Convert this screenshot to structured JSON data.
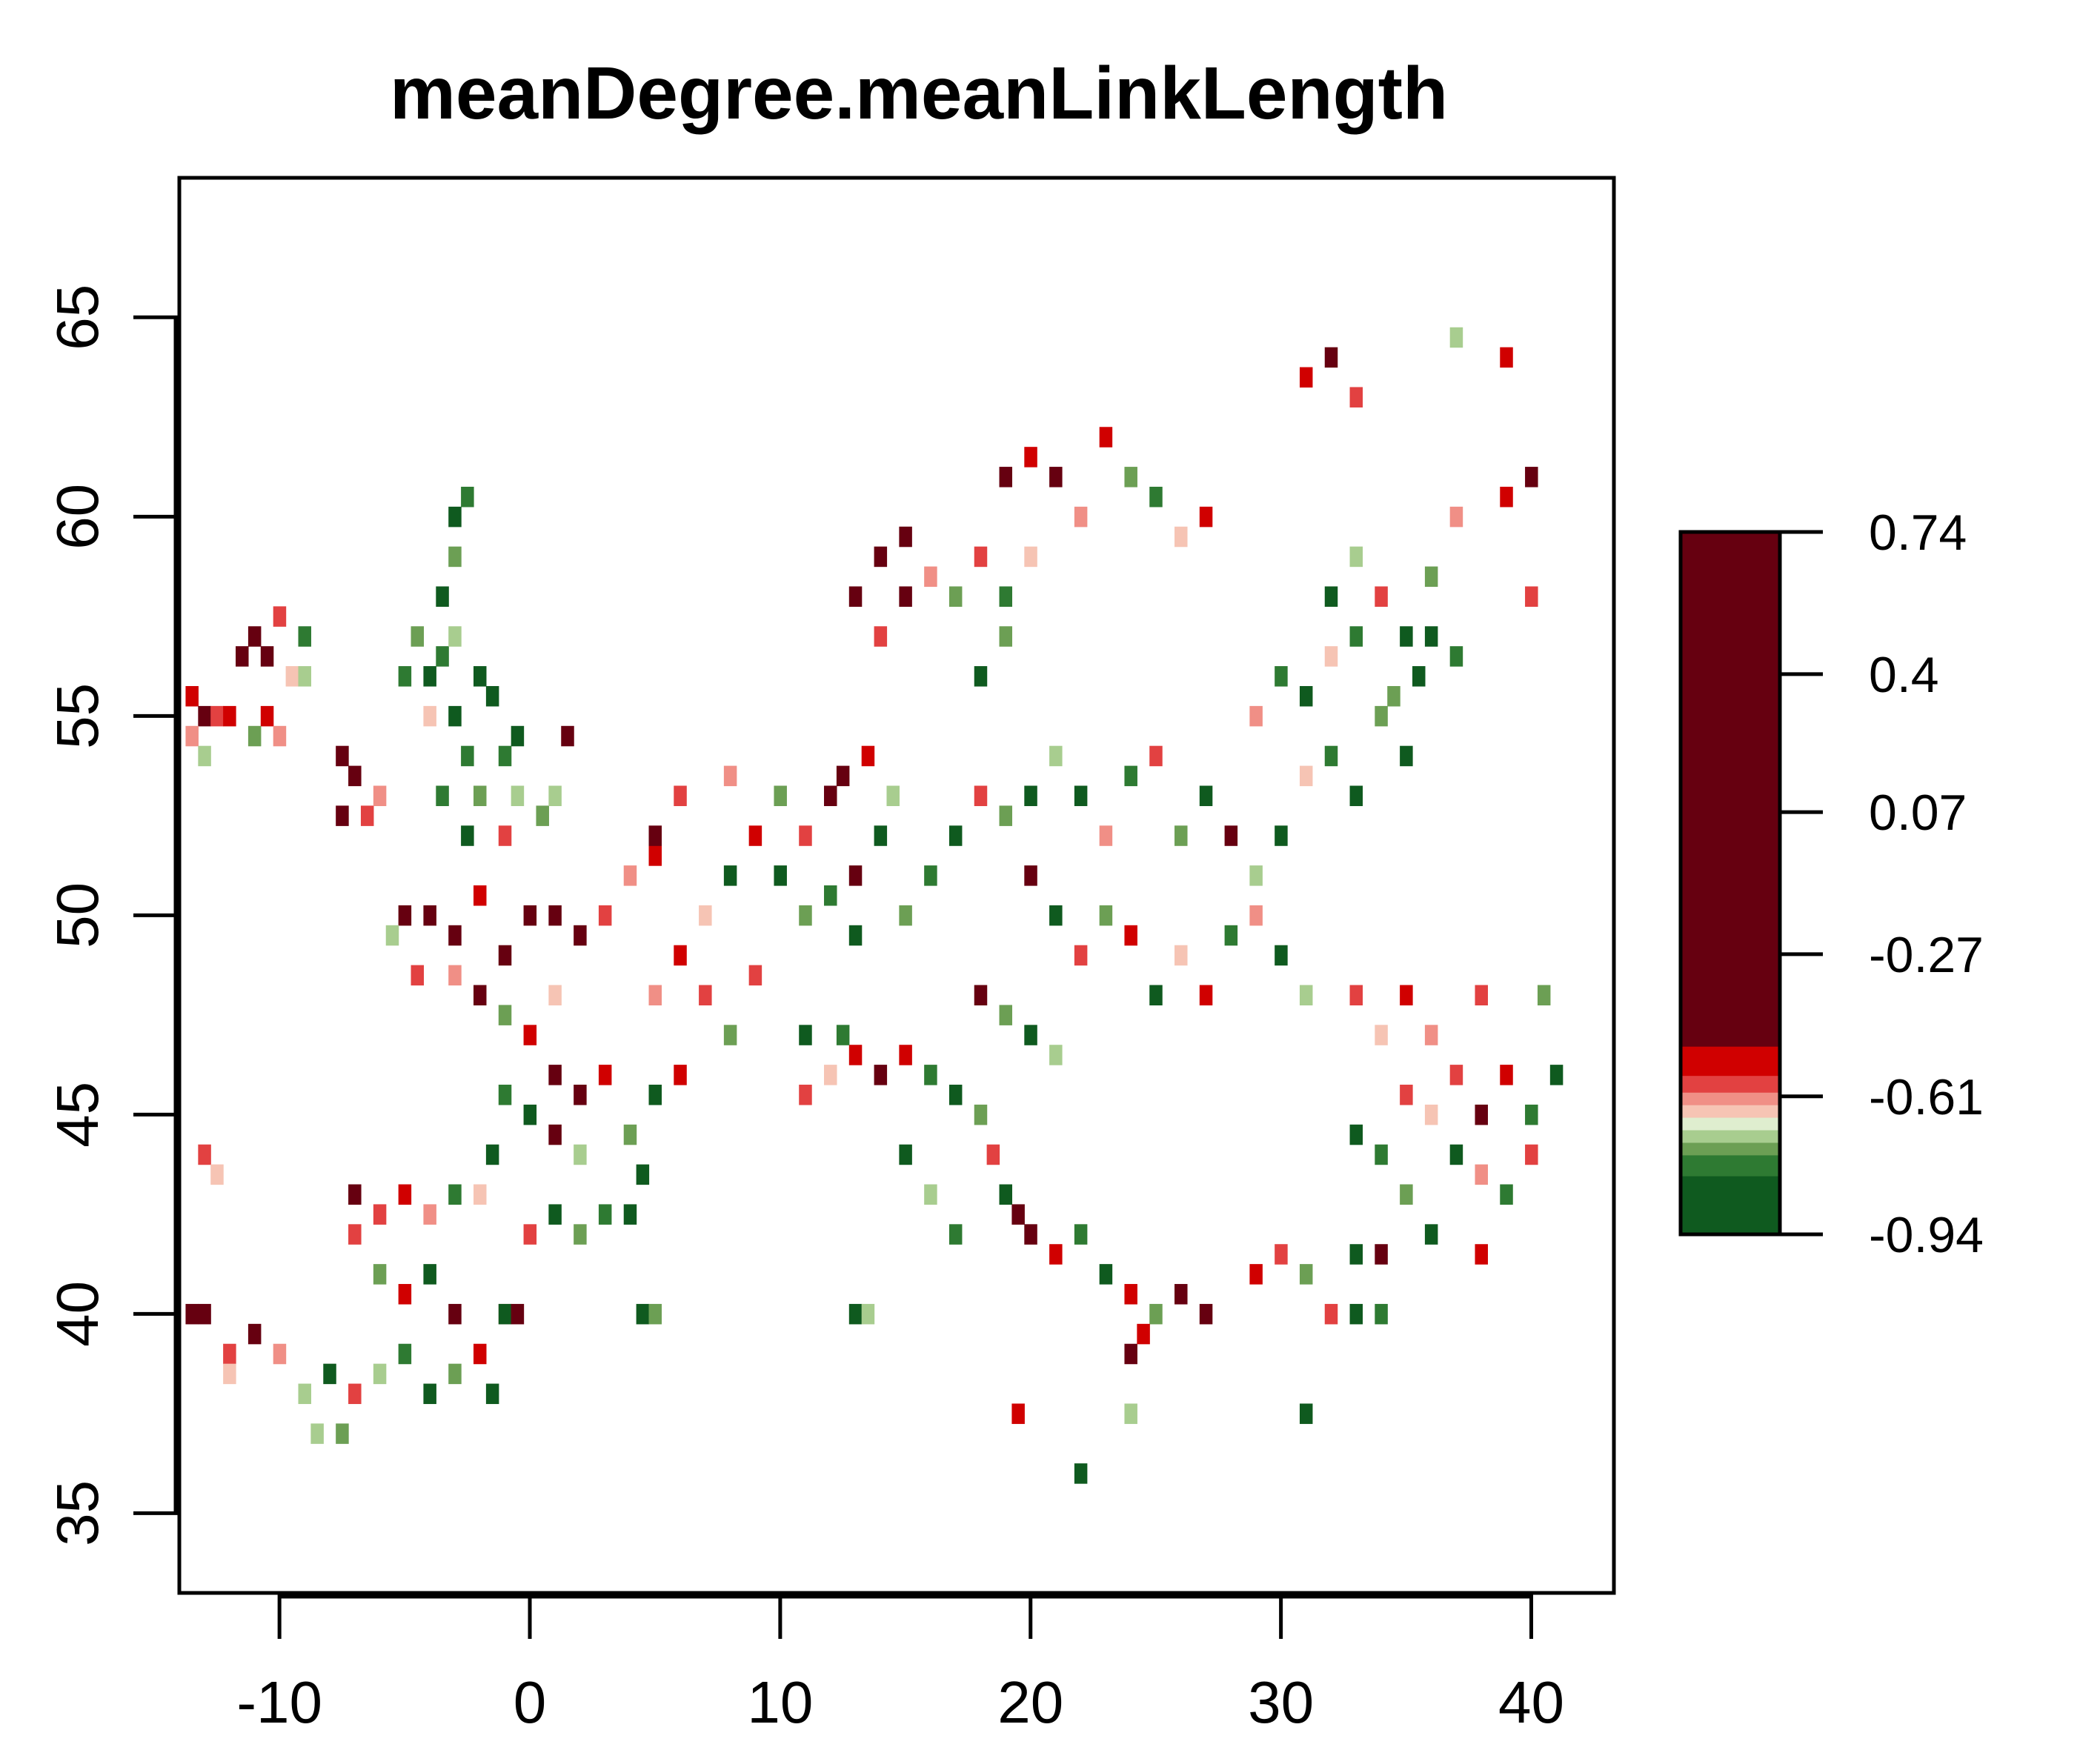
{
  "chart_data": {
    "type": "heatmap",
    "title": "meanDegree.meanLinkLength",
    "xlabel": "",
    "ylabel": "",
    "xlim": [
      -14,
      43.3
    ],
    "ylim": [
      33,
      68.5
    ],
    "x_ticks": [
      -10,
      0,
      10,
      20,
      30,
      40
    ],
    "y_ticks": [
      35,
      40,
      45,
      50,
      55,
      60,
      65
    ],
    "grid": false,
    "legend": {
      "position": "right",
      "tick_labels": [
        "0.74",
        "0.4",
        "0.07",
        "-0.27",
        "-0.61",
        "-0.94"
      ],
      "tick_values": [
        0.74,
        0.4,
        0.07,
        -0.27,
        -0.61,
        -0.94
      ],
      "range": [
        -0.94,
        0.74
      ],
      "color_bands": [
        {
          "from": -0.94,
          "to": -0.8,
          "color": "#0f5a1f"
        },
        {
          "from": -0.8,
          "to": -0.75,
          "color": "#2e7a32"
        },
        {
          "from": -0.75,
          "to": -0.72,
          "color": "#6c9f54"
        },
        {
          "from": -0.72,
          "to": -0.69,
          "color": "#a8cd8f"
        },
        {
          "from": -0.69,
          "to": -0.66,
          "color": "#dfeecf"
        },
        {
          "from": -0.66,
          "to": -0.63,
          "color": "#f6c4b4"
        },
        {
          "from": -0.63,
          "to": -0.6,
          "color": "#f08f86"
        },
        {
          "from": -0.6,
          "to": -0.56,
          "color": "#e24141"
        },
        {
          "from": -0.56,
          "to": -0.49,
          "color": "#d00000"
        },
        {
          "from": -0.49,
          "to": 0.74,
          "color": "#660010"
        }
      ]
    },
    "class_colors": [
      "#0f5a1f",
      "#2e7a32",
      "#6c9f54",
      "#a8cd8f",
      "#f6c4b4",
      "#f08f86",
      "#e24141",
      "#d00000",
      "#660010"
    ],
    "cell_size_degrees": 0.5,
    "cells": [
      [
        -13.5,
        55.5,
        7
      ],
      [
        -13,
        55,
        8
      ],
      [
        -12.5,
        55,
        6
      ],
      [
        -13.5,
        54.5,
        5
      ],
      [
        -12,
        55,
        7
      ],
      [
        -13,
        54,
        3
      ],
      [
        -11.5,
        56.5,
        8
      ],
      [
        -11,
        57,
        8
      ],
      [
        -10.5,
        56.5,
        8
      ],
      [
        -10,
        57.5,
        6
      ],
      [
        -9.5,
        56,
        4
      ],
      [
        -10.5,
        55,
        7
      ],
      [
        -9,
        57,
        1
      ],
      [
        -10,
        54.5,
        5
      ],
      [
        -11,
        54.5,
        2
      ],
      [
        -9,
        56,
        3
      ],
      [
        -7.5,
        54,
        8
      ],
      [
        -7,
        53.5,
        8
      ],
      [
        -6.5,
        52.5,
        6
      ],
      [
        -7.5,
        52.5,
        8
      ],
      [
        -6,
        53,
        5
      ],
      [
        -5,
        56,
        1
      ],
      [
        -4.5,
        57,
        2
      ],
      [
        -4,
        56,
        0
      ],
      [
        -3.5,
        56.5,
        1
      ],
      [
        -3,
        57,
        3
      ],
      [
        -3,
        55,
        0
      ],
      [
        -2.5,
        54,
        1
      ],
      [
        -2,
        53,
        2
      ],
      [
        -1.5,
        55.5,
        0
      ],
      [
        -1,
        54,
        1
      ],
      [
        -0.5,
        53,
        3
      ],
      [
        -3.5,
        58,
        0
      ],
      [
        -3,
        59,
        2
      ],
      [
        -2.5,
        60.5,
        1
      ],
      [
        -3,
        60,
        0
      ],
      [
        -4,
        55,
        4
      ],
      [
        -2,
        56,
        0
      ],
      [
        -1,
        52,
        6
      ],
      [
        -0.5,
        54.5,
        0
      ],
      [
        0.5,
        52.5,
        2
      ],
      [
        1,
        53,
        3
      ],
      [
        -2.5,
        52,
        0
      ],
      [
        -3.5,
        53,
        1
      ],
      [
        1.5,
        54.5,
        8
      ],
      [
        -5,
        50,
        8
      ],
      [
        -4,
        50,
        8
      ],
      [
        -3,
        49.5,
        8
      ],
      [
        -2,
        50.5,
        7
      ],
      [
        -1,
        49,
        8
      ],
      [
        0,
        50,
        8
      ],
      [
        1,
        50,
        8
      ],
      [
        2,
        49.5,
        8
      ],
      [
        3,
        50,
        6
      ],
      [
        1,
        48,
        4
      ],
      [
        0,
        47,
        7
      ],
      [
        -1,
        47.5,
        2
      ],
      [
        -2,
        48,
        8
      ],
      [
        -3,
        48.5,
        5
      ],
      [
        -4.5,
        48.5,
        6
      ],
      [
        -5.5,
        49.5,
        3
      ],
      [
        4,
        51,
        5
      ],
      [
        5,
        51.5,
        7
      ],
      [
        1,
        46,
        8
      ],
      [
        2,
        45.5,
        8
      ],
      [
        3,
        46,
        7
      ],
      [
        0,
        45,
        0
      ],
      [
        1,
        44.5,
        8
      ],
      [
        2,
        44,
        3
      ],
      [
        -1,
        45.5,
        1
      ],
      [
        4,
        44.5,
        2
      ],
      [
        5,
        45.5,
        0
      ],
      [
        6,
        46,
        7
      ],
      [
        4.5,
        43.5,
        0
      ],
      [
        -1.5,
        44,
        0
      ],
      [
        5,
        48,
        5
      ],
      [
        6,
        49,
        7
      ],
      [
        7,
        48,
        6
      ],
      [
        8,
        47,
        2
      ],
      [
        9,
        48.5,
        6
      ],
      [
        7,
        50,
        4
      ],
      [
        8,
        51,
        0
      ],
      [
        9,
        52,
        7
      ],
      [
        10,
        53,
        2
      ],
      [
        6,
        53,
        6
      ],
      [
        5,
        52,
        8
      ],
      [
        8,
        53.5,
        5
      ],
      [
        10,
        51,
        0
      ],
      [
        11,
        50,
        2
      ],
      [
        12,
        50.5,
        1
      ],
      [
        13,
        51,
        8
      ],
      [
        14,
        52,
        0
      ],
      [
        12,
        53,
        8
      ],
      [
        12.5,
        53.5,
        8
      ],
      [
        13.5,
        54,
        7
      ],
      [
        14.5,
        53,
        3
      ],
      [
        11,
        52,
        6
      ],
      [
        13,
        49.5,
        0
      ],
      [
        15,
        50,
        2
      ],
      [
        16,
        51,
        1
      ],
      [
        17,
        52,
        0
      ],
      [
        18,
        53,
        6
      ],
      [
        19,
        52.5,
        2
      ],
      [
        20,
        53,
        0
      ],
      [
        21,
        54,
        3
      ],
      [
        22,
        53,
        0
      ],
      [
        23,
        52,
        5
      ],
      [
        24,
        53.5,
        1
      ],
      [
        25,
        54,
        6
      ],
      [
        26,
        52,
        2
      ],
      [
        27,
        53,
        0
      ],
      [
        28,
        52,
        8
      ],
      [
        29,
        51,
        3
      ],
      [
        30,
        52,
        0
      ],
      [
        31,
        53.5,
        4
      ],
      [
        32,
        54,
        1
      ],
      [
        33,
        53,
        0
      ],
      [
        34,
        55,
        2
      ],
      [
        35,
        54,
        0
      ],
      [
        29,
        55,
        5
      ],
      [
        30,
        56,
        1
      ],
      [
        31,
        55.5,
        0
      ],
      [
        32,
        56.5,
        4
      ],
      [
        33,
        57,
        1
      ],
      [
        34,
        58,
        6
      ],
      [
        35,
        57,
        0
      ],
      [
        36,
        58.5,
        2
      ],
      [
        32,
        58,
        0
      ],
      [
        33,
        59,
        3
      ],
      [
        15,
        58,
        8
      ],
      [
        14,
        59,
        8
      ],
      [
        13,
        58,
        8
      ],
      [
        14,
        57,
        6
      ],
      [
        15,
        59.5,
        8
      ],
      [
        16,
        58.5,
        5
      ],
      [
        17,
        58,
        2
      ],
      [
        18,
        59,
        6
      ],
      [
        19,
        58,
        1
      ],
      [
        20,
        59,
        4
      ],
      [
        18,
        56,
        0
      ],
      [
        19,
        57,
        2
      ],
      [
        19,
        61,
        8
      ],
      [
        20,
        61.5,
        7
      ],
      [
        21,
        61,
        8
      ],
      [
        22,
        60,
        5
      ],
      [
        23,
        62,
        7
      ],
      [
        24,
        61,
        2
      ],
      [
        26,
        59.5,
        4
      ],
      [
        27,
        60,
        7
      ],
      [
        25,
        60.5,
        1
      ],
      [
        31,
        63.5,
        7
      ],
      [
        32,
        64,
        8
      ],
      [
        33,
        63,
        6
      ],
      [
        37,
        64.5,
        3
      ],
      [
        39,
        64,
        7
      ],
      [
        37,
        60,
        5
      ],
      [
        39,
        60.5,
        7
      ],
      [
        40,
        61,
        8
      ],
      [
        40,
        58,
        6
      ],
      [
        20,
        51,
        8
      ],
      [
        21,
        50,
        0
      ],
      [
        22,
        49,
        6
      ],
      [
        23,
        50,
        2
      ],
      [
        24,
        49.5,
        7
      ],
      [
        25,
        48,
        0
      ],
      [
        26,
        49,
        4
      ],
      [
        27,
        48,
        7
      ],
      [
        28,
        49.5,
        1
      ],
      [
        29,
        50,
        5
      ],
      [
        30,
        49,
        0
      ],
      [
        31,
        48,
        3
      ],
      [
        33,
        48,
        6
      ],
      [
        34,
        47,
        4
      ],
      [
        35,
        48,
        7
      ],
      [
        36,
        47,
        5
      ],
      [
        37,
        46,
        6
      ],
      [
        38,
        45,
        8
      ],
      [
        39,
        46,
        7
      ],
      [
        40,
        45,
        1
      ],
      [
        41,
        46,
        0
      ],
      [
        40.5,
        48,
        2
      ],
      [
        38,
        48,
        6
      ],
      [
        36,
        45,
        4
      ],
      [
        33,
        44.5,
        0
      ],
      [
        34,
        44,
        1
      ],
      [
        35,
        45.5,
        6
      ],
      [
        37,
        44,
        0
      ],
      [
        38,
        43.5,
        5
      ],
      [
        39,
        43,
        1
      ],
      [
        40,
        44,
        6
      ],
      [
        35,
        43,
        2
      ],
      [
        36,
        42,
        0
      ],
      [
        38,
        41.5,
        7
      ],
      [
        13,
        46.5,
        7
      ],
      [
        14,
        46,
        8
      ],
      [
        15,
        46.5,
        7
      ],
      [
        16,
        46,
        1
      ],
      [
        17,
        45.5,
        0
      ],
      [
        18,
        45,
        2
      ],
      [
        18.5,
        44,
        6
      ],
      [
        19,
        43,
        0
      ],
      [
        19.5,
        42.5,
        8
      ],
      [
        20,
        42,
        8
      ],
      [
        21,
        41.5,
        7
      ],
      [
        22,
        42,
        1
      ],
      [
        23,
        41,
        0
      ],
      [
        24,
        40.5,
        7
      ],
      [
        25,
        40,
        2
      ],
      [
        26,
        40.5,
        8
      ],
      [
        27,
        40,
        8
      ],
      [
        15,
        44,
        0
      ],
      [
        16,
        43,
        3
      ],
      [
        17,
        42,
        1
      ],
      [
        12,
        46,
        4
      ],
      [
        11,
        45.5,
        6
      ],
      [
        11,
        47,
        0
      ],
      [
        12.5,
        47,
        1
      ],
      [
        18,
        48,
        8
      ],
      [
        19,
        47.5,
        2
      ],
      [
        20,
        47,
        0
      ],
      [
        21,
        46.5,
        3
      ],
      [
        24,
        39,
        8
      ],
      [
        24.5,
        39.5,
        7
      ],
      [
        24,
        37.5,
        3
      ],
      [
        19.5,
        37.5,
        7
      ],
      [
        22,
        36,
        0
      ],
      [
        31,
        37.5,
        0
      ],
      [
        -7,
        43,
        8
      ],
      [
        -6,
        42.5,
        6
      ],
      [
        -5,
        43,
        7
      ],
      [
        -4,
        42.5,
        5
      ],
      [
        -3,
        43,
        1
      ],
      [
        -7,
        42,
        6
      ],
      [
        -6,
        41,
        2
      ],
      [
        -5,
        40.5,
        7
      ],
      [
        -4,
        41,
        0
      ],
      [
        -3,
        40,
        8
      ],
      [
        -2,
        39,
        7
      ],
      [
        -1,
        40,
        5
      ],
      [
        -5,
        39,
        1
      ],
      [
        -6,
        38.5,
        3
      ],
      [
        -7,
        38,
        6
      ],
      [
        -8,
        38.5,
        0
      ],
      [
        -9,
        38,
        3
      ],
      [
        -10,
        39,
        5
      ],
      [
        -11,
        39.5,
        8
      ],
      [
        -12,
        39,
        6
      ],
      [
        -13,
        40,
        8
      ],
      [
        -13.5,
        40,
        8
      ],
      [
        -12,
        38.5,
        4
      ],
      [
        -7.5,
        37,
        2
      ],
      [
        -8.5,
        37,
        3
      ],
      [
        -4,
        38,
        0
      ],
      [
        -3,
        38.5,
        2
      ],
      [
        -1.5,
        38,
        0
      ],
      [
        1,
        42.5,
        0
      ],
      [
        2,
        42,
        2
      ],
      [
        3,
        42.5,
        1
      ],
      [
        4,
        42.5,
        0
      ],
      [
        0,
        42,
        6
      ],
      [
        -2,
        43,
        4
      ],
      [
        -13,
        44,
        6
      ],
      [
        -12.5,
        43.5,
        4
      ],
      [
        4.5,
        40,
        0
      ],
      [
        5,
        40,
        2
      ],
      [
        13,
        40,
        0
      ],
      [
        13.5,
        40,
        3
      ],
      [
        33,
        40,
        0
      ],
      [
        32,
        40,
        6
      ],
      [
        34,
        40,
        1
      ],
      [
        29,
        41,
        7
      ],
      [
        30,
        41.5,
        6
      ],
      [
        31,
        41,
        2
      ],
      [
        33,
        41.5,
        0
      ],
      [
        34,
        41.5,
        8
      ],
      [
        -1,
        40,
        0
      ],
      [
        -0.5,
        40,
        8
      ],
      [
        36,
        57,
        0
      ],
      [
        37,
        56.5,
        1
      ],
      [
        35.5,
        56,
        0
      ],
      [
        34.5,
        55.5,
        2
      ]
    ]
  }
}
